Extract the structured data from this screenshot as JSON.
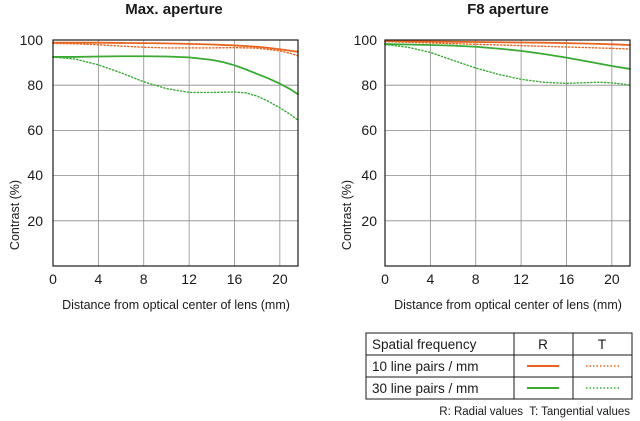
{
  "colors": {
    "radial_10": "#e8641e",
    "tangential_10": "#e8641e",
    "radial_30": "#3aaa35",
    "tangential_30": "#3aaa35",
    "grid": "#8c8c8c",
    "frame": "#1a1a1a"
  },
  "chart_data": [
    {
      "type": "line",
      "title": "Max. aperture",
      "xlabel": "Distance from optical center of lens (mm)",
      "ylabel": "Contrast (%)",
      "xlim": [
        0,
        21.6
      ],
      "ylim": [
        0,
        100
      ],
      "xticks": [
        "0",
        "4",
        "8",
        "12",
        "16",
        "20"
      ],
      "yticks": [
        "20",
        "40",
        "60",
        "80",
        "100"
      ],
      "grid": true,
      "series": [
        {
          "frequency": "10 line pairs / mm",
          "kind": "R",
          "style": "solid",
          "color": "#e8641e",
          "x": [
            0,
            2,
            4,
            6,
            8,
            10,
            12,
            14,
            16,
            18,
            19,
            20,
            21,
            21.6
          ],
          "y": [
            98.8,
            98.8,
            98.8,
            98.7,
            98.6,
            98.5,
            98.3,
            98.0,
            97.6,
            97.0,
            96.5,
            95.9,
            95.2,
            94.8
          ]
        },
        {
          "frequency": "10 line pairs / mm",
          "kind": "T",
          "style": "dotted",
          "color": "#e8641e",
          "x": [
            0,
            2,
            4,
            6,
            8,
            10,
            12,
            14,
            16,
            18,
            20,
            21,
            21.6
          ],
          "y": [
            98.5,
            98.3,
            97.9,
            97.3,
            96.8,
            96.5,
            96.5,
            96.5,
            96.6,
            96.4,
            95.2,
            94.0,
            93.0
          ]
        },
        {
          "frequency": "30 line pairs / mm",
          "kind": "R",
          "style": "solid",
          "color": "#3aaa35",
          "x": [
            0,
            2,
            4,
            6,
            8,
            10,
            12,
            14,
            15,
            16,
            17,
            18,
            19,
            20,
            21,
            21.6
          ],
          "y": [
            92.5,
            92.5,
            92.7,
            92.8,
            92.8,
            92.7,
            92.3,
            91.2,
            90.2,
            88.8,
            87.0,
            85.0,
            83.0,
            80.7,
            78.0,
            76.0
          ]
        },
        {
          "frequency": "30 line pairs / mm",
          "kind": "T",
          "style": "dotted",
          "color": "#3aaa35",
          "x": [
            0,
            2,
            4,
            6,
            8,
            10,
            12,
            14,
            16,
            17,
            18,
            19,
            20,
            21,
            21.6
          ],
          "y": [
            92.5,
            91.5,
            89.0,
            85.5,
            81.5,
            78.5,
            76.8,
            76.8,
            77.0,
            76.6,
            75.2,
            72.8,
            70.0,
            66.8,
            64.5
          ]
        }
      ]
    },
    {
      "type": "line",
      "title": "F8 aperture",
      "xlabel": "Distance from optical center of lens (mm)",
      "ylabel": "Contrast (%)",
      "xlim": [
        0,
        21.6
      ],
      "ylim": [
        0,
        100
      ],
      "xticks": [
        "0",
        "4",
        "8",
        "12",
        "16",
        "20"
      ],
      "yticks": [
        "20",
        "40",
        "60",
        "80",
        "100"
      ],
      "grid": true,
      "series": [
        {
          "frequency": "10 line pairs / mm",
          "kind": "R",
          "style": "solid",
          "color": "#e8641e",
          "x": [
            0,
            2,
            4,
            6,
            8,
            10,
            12,
            14,
            16,
            18,
            20,
            21.6
          ],
          "y": [
            99.5,
            99.4,
            99.3,
            99.2,
            99.1,
            99.0,
            98.9,
            98.8,
            98.6,
            98.4,
            98.1,
            97.8
          ]
        },
        {
          "frequency": "10 line pairs / mm",
          "kind": "T",
          "style": "dotted",
          "color": "#e8641e",
          "x": [
            0,
            2,
            4,
            6,
            8,
            10,
            12,
            14,
            16,
            18,
            20,
            21.6
          ],
          "y": [
            99.3,
            99.0,
            98.7,
            98.4,
            98.1,
            97.8,
            97.5,
            97.2,
            96.9,
            96.6,
            96.3,
            96.0
          ]
        },
        {
          "frequency": "30 line pairs / mm",
          "kind": "R",
          "style": "solid",
          "color": "#3aaa35",
          "x": [
            0,
            2,
            4,
            6,
            8,
            10,
            12,
            14,
            16,
            18,
            20,
            21.6
          ],
          "y": [
            98.2,
            98.0,
            97.8,
            97.5,
            97.0,
            96.2,
            95.2,
            93.8,
            92.2,
            90.4,
            88.5,
            87.2
          ]
        },
        {
          "frequency": "30 line pairs / mm",
          "kind": "T",
          "style": "dotted",
          "color": "#3aaa35",
          "x": [
            0,
            2,
            4,
            6,
            8,
            10,
            12,
            14,
            16,
            18,
            19,
            20,
            21,
            21.6
          ],
          "y": [
            98.0,
            96.8,
            94.5,
            91.0,
            87.6,
            84.8,
            82.6,
            81.3,
            80.8,
            81.2,
            81.3,
            81.0,
            80.5,
            80.0
          ]
        }
      ]
    }
  ],
  "legend": {
    "header": {
      "label": "Spatial frequency",
      "r": "R",
      "t": "T"
    },
    "rows": [
      {
        "label": "10 line pairs / mm",
        "color": "#e8641e"
      },
      {
        "label": "30 line pairs / mm",
        "color": "#3aaa35"
      }
    ],
    "note": "R: Radial values  T: Tangential values"
  }
}
